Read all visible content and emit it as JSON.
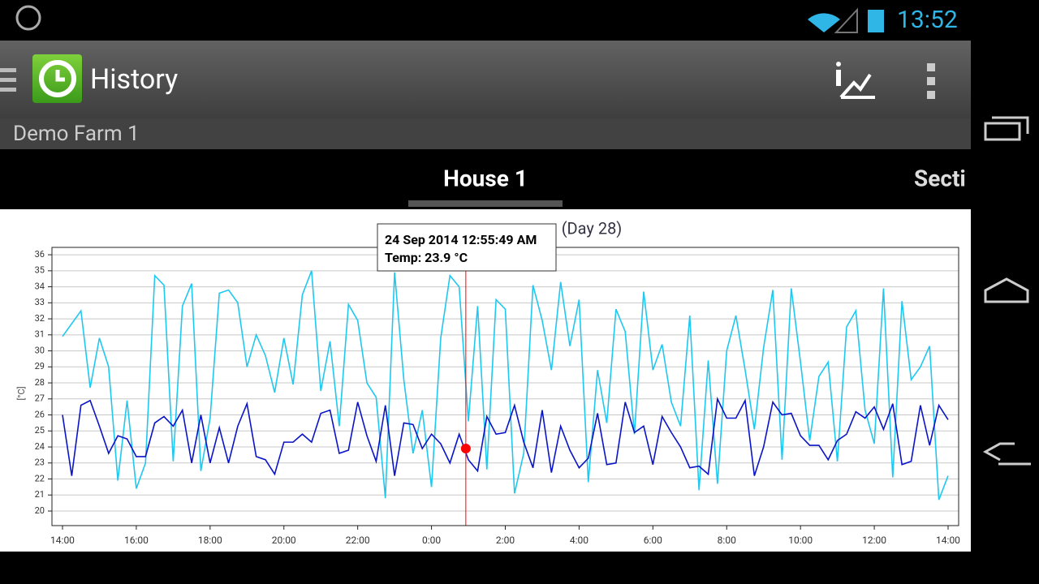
{
  "status_bar": {
    "time": "13:52"
  },
  "action_bar": {
    "title": "History",
    "subtitle": "Demo Farm 1"
  },
  "tabs": [
    "House 1",
    "Secti"
  ],
  "chart_data": {
    "type": "line",
    "title": "(Day 28)",
    "y_label": "[°C]",
    "x": [
      0,
      0.25,
      0.5,
      0.75,
      1,
      1.25,
      1.5,
      1.75,
      2,
      2.25,
      2.5,
      2.75,
      3,
      3.25,
      3.5,
      3.75,
      4,
      4.25,
      4.5,
      4.75,
      5,
      5.25,
      5.5,
      5.75,
      6,
      6.25,
      6.5,
      6.75,
      7,
      7.25,
      7.5,
      7.75,
      8,
      8.25,
      8.5,
      8.75,
      9,
      9.25,
      9.5,
      9.75,
      10,
      10.25,
      10.5,
      10.75,
      11,
      11.25,
      11.5,
      11.75,
      12,
      12.25,
      12.5,
      12.75,
      13,
      13.25,
      13.5,
      13.75,
      14,
      14.25,
      14.5,
      14.75,
      15,
      15.25,
      15.5,
      15.75,
      16,
      16.25,
      16.5,
      16.75,
      17,
      17.25,
      17.5,
      17.75,
      18,
      18.25,
      18.5,
      18.75,
      19,
      19.25,
      19.5,
      19.75,
      20,
      20.25,
      20.5,
      20.75,
      21,
      21.25,
      21.5,
      21.75,
      22,
      22.25,
      22.5,
      22.75,
      23,
      23.25,
      23.5,
      23.75,
      24
    ],
    "series": [
      {
        "color": "#1ec8f0",
        "values": [
          30.9,
          31.7,
          32.5,
          27.7,
          30.8,
          29.0,
          21.9,
          26.9,
          21.4,
          23.0,
          34.7,
          34.1,
          23.1,
          32.8,
          34.2,
          22.5,
          25.8,
          33.6,
          33.8,
          33.0,
          29.0,
          31.0,
          29.7,
          27.4,
          30.8,
          27.9,
          33.5,
          35.0,
          27.5,
          30.6,
          25.3,
          32.9,
          31.9,
          28.0,
          27.1,
          20.8,
          34.9,
          28.2,
          23.6,
          26.3,
          21.5,
          30.8,
          34.7,
          34.0,
          25.6,
          32.8,
          22.6,
          33.2,
          32.6,
          21.1,
          23.6,
          34.1,
          31.9,
          28.8,
          34.3,
          30.3,
          33.2,
          21.8,
          28.8,
          25.5,
          32.6,
          31.2,
          24.8,
          33.7,
          28.8,
          30.4,
          26.8,
          25.3,
          32.2,
          21.3,
          29.4,
          21.7,
          30.0,
          32.2,
          28.8,
          25.1,
          30.2,
          33.8,
          23.2,
          33.9,
          29.3,
          24.4,
          28.4,
          29.3,
          23.1,
          31.5,
          32.5,
          26.3,
          24.2,
          33.9,
          22.1,
          33.1,
          28.2,
          29.0,
          30.3,
          20.7,
          22.2
        ]
      },
      {
        "color": "#0a14c8",
        "values": [
          26.0,
          22.2,
          26.6,
          26.9,
          25.3,
          23.6,
          24.7,
          24.5,
          23.4,
          23.4,
          25.5,
          25.9,
          25.3,
          26.3,
          23.0,
          26.0,
          23.0,
          25.2,
          23.0,
          25.3,
          26.7,
          23.4,
          23.2,
          22.3,
          24.3,
          24.3,
          24.8,
          24.3,
          26.1,
          26.3,
          23.6,
          23.8,
          26.8,
          24.7,
          23.1,
          26.6,
          22.2,
          25.5,
          25.4,
          23.9,
          24.8,
          24.2,
          23.0,
          24.8,
          23.2,
          22.5,
          25.9,
          24.8,
          24.9,
          26.6,
          24.3,
          22.7,
          26.3,
          22.4,
          25.3,
          23.8,
          22.7,
          23.3,
          26.1,
          22.9,
          23.0,
          26.8,
          24.9,
          25.3,
          22.9,
          25.9,
          24.9,
          24.0,
          22.7,
          22.8,
          22.3,
          27.0,
          25.8,
          25.8,
          26.9,
          22.2,
          24.0,
          26.8,
          26.0,
          26.1,
          24.7,
          24.1,
          24.1,
          23.2,
          24.4,
          24.8,
          26.2,
          25.8,
          26.5,
          25.1,
          26.7,
          22.9,
          23.1,
          26.6,
          24.1,
          26.6,
          25.7
        ]
      }
    ],
    "xlim": [
      -0.286,
      24.286
    ],
    "ylim": [
      19.09,
      36.46
    ],
    "xticks": [
      {
        "value": 0,
        "label": "14:00"
      },
      {
        "value": 2,
        "label": "16:00"
      },
      {
        "value": 4,
        "label": "18:00"
      },
      {
        "value": 6,
        "label": "20:00"
      },
      {
        "value": 8,
        "label": "22:00"
      },
      {
        "value": 10,
        "label": "0:00"
      },
      {
        "value": 12,
        "label": "2:00"
      },
      {
        "value": 14,
        "label": "4:00"
      },
      {
        "value": 16,
        "label": "6:00"
      },
      {
        "value": 18,
        "label": "8:00"
      },
      {
        "value": 20,
        "label": "10:00"
      },
      {
        "value": 22,
        "label": "12:00"
      },
      {
        "value": 24,
        "label": "14:00"
      }
    ],
    "yticks": [
      20,
      21,
      22,
      23,
      24,
      25,
      26,
      27,
      28,
      29,
      30,
      31,
      32,
      33,
      34,
      35,
      36
    ],
    "grid": true,
    "cursor": {
      "x": 10.93,
      "y": 23.9,
      "time": "24 Sep 2014 12:55:49 AM",
      "label": "Temp: 23.9 °C",
      "color": "#ff0000"
    }
  }
}
